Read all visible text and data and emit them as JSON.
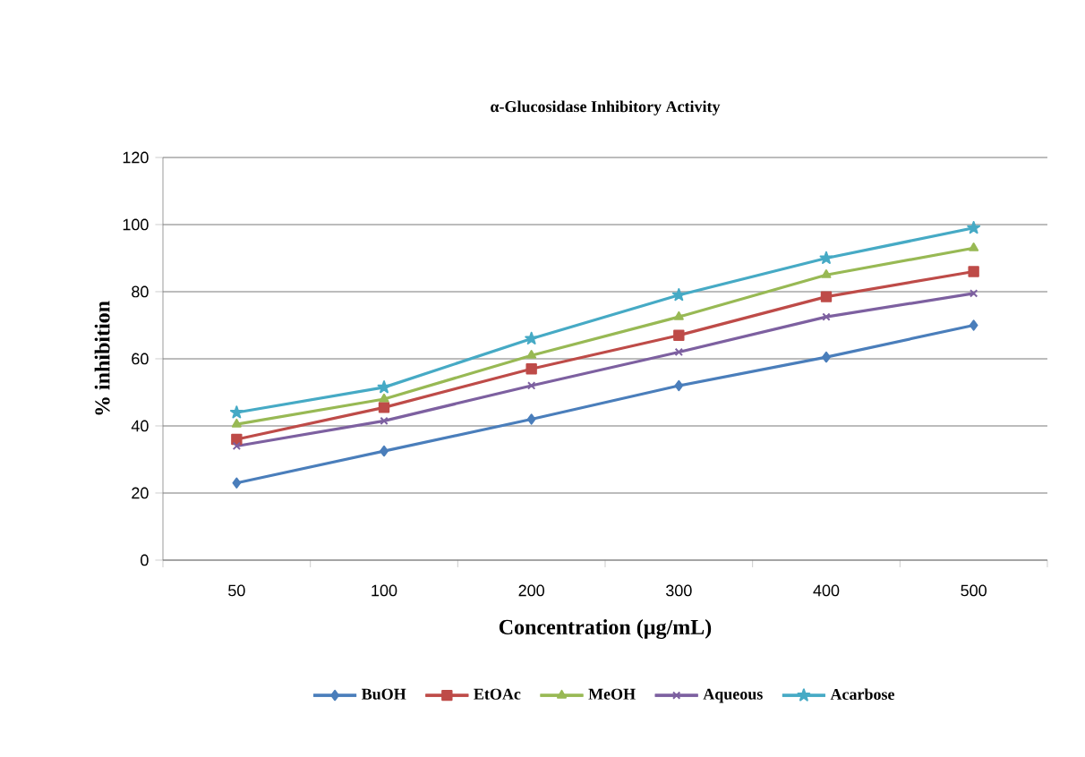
{
  "chart_data": {
    "type": "line",
    "title": "α-Glucosidase Inhibitory Activity",
    "xlabel": "Concentration (µg/mL)",
    "ylabel": "% inhibition",
    "categories": [
      "50",
      "100",
      "200",
      "300",
      "400",
      "500"
    ],
    "series": [
      {
        "name": "BuOH",
        "color": "#4a7ebb",
        "marker": "diamond",
        "values": [
          23,
          32.5,
          42,
          52,
          60.5,
          70
        ]
      },
      {
        "name": "EtOAc",
        "color": "#be4b48",
        "marker": "square",
        "values": [
          36,
          45.5,
          57,
          67,
          78.5,
          86
        ]
      },
      {
        "name": "MeOH",
        "color": "#98b954",
        "marker": "triangle",
        "values": [
          40.5,
          48,
          61,
          72.5,
          85,
          93
        ]
      },
      {
        "name": "Aqueous",
        "color": "#7d60a0",
        "marker": "cross",
        "values": [
          34,
          41.5,
          52,
          62,
          72.5,
          79.5
        ]
      },
      {
        "name": "Acarbose",
        "color": "#46aac5",
        "marker": "star",
        "values": [
          44,
          51.5,
          66,
          79,
          90,
          99
        ]
      }
    ],
    "ylim": [
      0,
      120
    ],
    "yticks": [
      0,
      20,
      40,
      60,
      80,
      100,
      120
    ],
    "grid": "y",
    "legend": "bottom",
    "line_style": "solid"
  }
}
